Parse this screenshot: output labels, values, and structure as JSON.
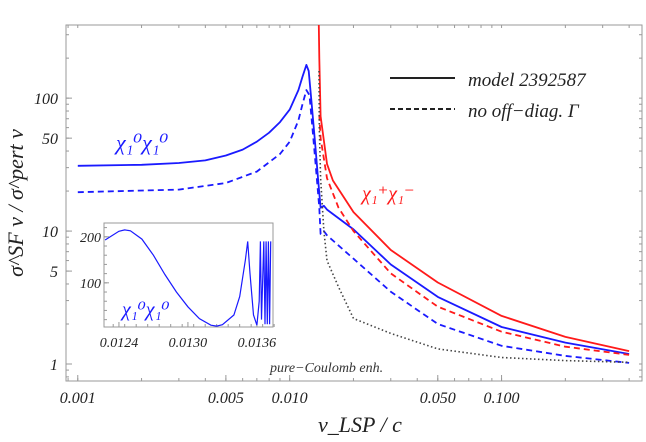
{
  "chart_data": {
    "type": "line",
    "xscale": "log",
    "yscale": "log",
    "xlim": [
      0.00088,
      0.46
    ],
    "ylim": [
      0.745,
      355
    ],
    "xlabel": "v_LSP / c",
    "ylabel": "σ^SF v / σ^pert v",
    "xticks": [
      "0.001",
      "0.005",
      "0.010",
      "0.050",
      "0.100"
    ],
    "xtick_values": [
      0.001,
      0.005,
      0.01,
      0.05,
      0.1
    ],
    "yticks": [
      "1",
      "5",
      "10",
      "50",
      "100"
    ],
    "ytick_values": [
      1,
      5,
      10,
      50,
      100
    ],
    "legend": {
      "placement": "top-right",
      "entries": [
        {
          "label": "model 2392587",
          "style": "solid"
        },
        {
          "label": "no off−diag. Γ",
          "style": "dashed"
        }
      ]
    },
    "annotations": {
      "neutral": "χ₁⁰χ₁⁰",
      "chargino": "χ₁⁺χ₁⁻",
      "coulomb": "pure−Coulomb enh."
    },
    "colors": {
      "neutral": "#1a1aff",
      "chargino": "#ff1a1a",
      "coulomb": "#444444"
    },
    "series": [
      {
        "key": "neutral-solid",
        "color": "#1a1aff",
        "style": "solid",
        "points": [
          [
            0.001,
            31
          ],
          [
            0.002,
            31.5
          ],
          [
            0.003,
            32.5
          ],
          [
            0.004,
            34
          ],
          [
            0.005,
            37
          ],
          [
            0.006,
            41
          ],
          [
            0.007,
            47
          ],
          [
            0.008,
            55
          ],
          [
            0.009,
            66
          ],
          [
            0.01,
            82
          ],
          [
            0.011,
            115
          ],
          [
            0.0115,
            145
          ],
          [
            0.012,
            178
          ],
          [
            0.0123,
            160
          ],
          [
            0.0127,
            90
          ],
          [
            0.0132,
            45
          ],
          [
            0.0136,
            25
          ],
          [
            0.014,
            15
          ],
          [
            0.0145,
            15.5
          ],
          [
            0.015,
            14.5
          ],
          [
            0.02,
            10.3
          ],
          [
            0.03,
            5.6
          ],
          [
            0.05,
            3.2
          ],
          [
            0.1,
            1.9
          ],
          [
            0.2,
            1.45
          ],
          [
            0.4,
            1.19
          ]
        ]
      },
      {
        "key": "neutral-dashed",
        "color": "#1a1aff",
        "style": "dashed",
        "points": [
          [
            0.001,
            19.6
          ],
          [
            0.003,
            20.5
          ],
          [
            0.005,
            23
          ],
          [
            0.007,
            28
          ],
          [
            0.009,
            38
          ],
          [
            0.01,
            47
          ],
          [
            0.011,
            68
          ],
          [
            0.0115,
            90
          ],
          [
            0.012,
            115
          ],
          [
            0.0124,
            105
          ],
          [
            0.0128,
            60
          ],
          [
            0.0133,
            30
          ],
          [
            0.0138,
            15
          ],
          [
            0.014,
            9.5
          ],
          [
            0.0145,
            10
          ],
          [
            0.015,
            9.3
          ],
          [
            0.02,
            6.2
          ],
          [
            0.03,
            3.5
          ],
          [
            0.05,
            2.0
          ],
          [
            0.1,
            1.37
          ],
          [
            0.2,
            1.15
          ],
          [
            0.4,
            1.02
          ]
        ]
      },
      {
        "key": "chargino-solid",
        "color": "#ff1a1a",
        "style": "solid",
        "points": [
          [
            0.01372,
            355
          ],
          [
            0.0138,
            200
          ],
          [
            0.014,
            73
          ],
          [
            0.015,
            32
          ],
          [
            0.016,
            24
          ],
          [
            0.02,
            13.9
          ],
          [
            0.03,
            7.2
          ],
          [
            0.05,
            4.1
          ],
          [
            0.1,
            2.3
          ],
          [
            0.2,
            1.6
          ],
          [
            0.4,
            1.25
          ]
        ]
      },
      {
        "key": "chargino-dashed",
        "color": "#ff1a1a",
        "style": "dashed",
        "points": [
          [
            0.0138,
            75
          ],
          [
            0.014,
            50
          ],
          [
            0.015,
            25
          ],
          [
            0.017,
            15
          ],
          [
            0.02,
            10
          ],
          [
            0.03,
            4.8
          ],
          [
            0.05,
            2.7
          ],
          [
            0.1,
            1.75
          ],
          [
            0.2,
            1.35
          ],
          [
            0.4,
            1.17
          ]
        ]
      },
      {
        "key": "coulomb-dotted",
        "color": "#444444",
        "style": "dotted",
        "points": [
          [
            0.01375,
            160
          ],
          [
            0.0138,
            60
          ],
          [
            0.014,
            25
          ],
          [
            0.0145,
            10
          ],
          [
            0.015,
            6
          ],
          [
            0.017,
            3.8
          ],
          [
            0.02,
            2.2
          ],
          [
            0.03,
            1.7
          ],
          [
            0.05,
            1.3
          ],
          [
            0.1,
            1.12
          ],
          [
            0.2,
            1.06
          ],
          [
            0.4,
            1.03
          ]
        ]
      }
    ],
    "inset": {
      "xscale": "linear",
      "yscale": "linear",
      "xlim": [
        0.01227,
        0.01374
      ],
      "ylim": [
        4,
        230
      ],
      "xticks": [
        "0.0124",
        "0.0130",
        "0.0136"
      ],
      "xtick_values": [
        0.0124,
        0.013,
        0.0136
      ],
      "yticks": [
        "200",
        "100"
      ],
      "ytick_values": [
        200,
        100
      ],
      "label": "χ₁⁰χ₁⁰",
      "color": "#1a1aff",
      "points": [
        [
          0.01228,
          193
        ],
        [
          0.0124,
          212
        ],
        [
          0.01245,
          215
        ],
        [
          0.0125,
          213
        ],
        [
          0.0126,
          195
        ],
        [
          0.0127,
          160
        ],
        [
          0.0128,
          118
        ],
        [
          0.0129,
          80
        ],
        [
          0.013,
          48
        ],
        [
          0.0131,
          22
        ],
        [
          0.0132,
          8
        ],
        [
          0.01325,
          6
        ],
        [
          0.0133,
          9
        ],
        [
          0.0134,
          30
        ],
        [
          0.01345,
          70
        ],
        [
          0.0135,
          150
        ],
        [
          0.01352,
          190
        ],
        [
          0.01354,
          120
        ],
        [
          0.01357,
          30
        ],
        [
          0.0136,
          8
        ],
        [
          0.01362,
          60
        ],
        [
          0.01363,
          190
        ],
        [
          0.01364,
          20
        ],
        [
          0.01366,
          190
        ],
        [
          0.01367,
          10
        ],
        [
          0.01368,
          190
        ],
        [
          0.01369,
          10
        ],
        [
          0.0137,
          190
        ],
        [
          0.01371,
          10
        ],
        [
          0.01372,
          190
        ]
      ]
    }
  }
}
